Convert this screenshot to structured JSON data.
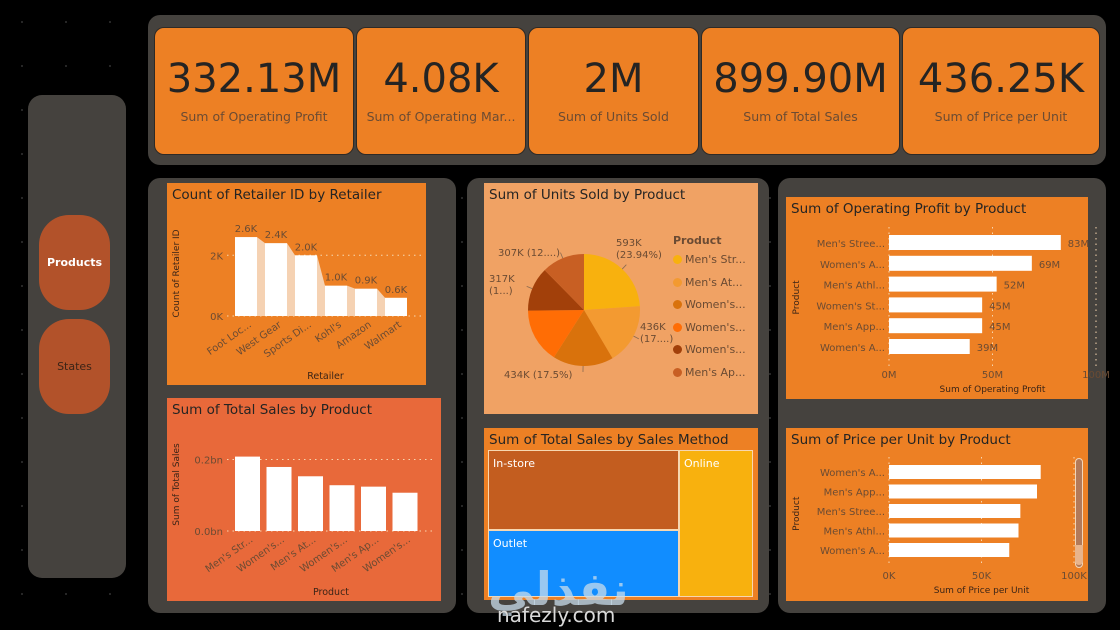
{
  "nav": {
    "buttons": [
      {
        "label": "Products",
        "active": true
      },
      {
        "label": "States",
        "active": false
      }
    ]
  },
  "kpis": [
    {
      "value": "332.13M",
      "label": "Sum of Operating Profit"
    },
    {
      "value": "4.08K",
      "label": "Sum of Operating Mar..."
    },
    {
      "value": "2M",
      "label": "Sum of Units Sold"
    },
    {
      "value": "899.90M",
      "label": "Sum of Total Sales"
    },
    {
      "value": "436.25K",
      "label": "Sum of Price per Unit"
    }
  ],
  "colors": {
    "background": "#000000",
    "panel": "#45423e",
    "accent_orange": "#ed8024",
    "light_orange": "#f0a264",
    "red_orange": "#e8693a",
    "nav_button": "#b2522a",
    "text_dark": "#252423"
  },
  "chart_data": [
    {
      "id": "retailer",
      "type": "bar",
      "title": "Count of Retailer ID by Retailer",
      "xlabel": "Retailer",
      "ylabel": "Count of Retailer ID",
      "categories": [
        "Foot Loc...",
        "West Gear",
        "Sports Di...",
        "Kohl's",
        "Amazon",
        "Walmart"
      ],
      "values": [
        2.6,
        2.4,
        2.0,
        1.0,
        0.9,
        0.6
      ],
      "data_labels": [
        "2.6K",
        "2.4K",
        "2.0K",
        "1.0K",
        "0.9K",
        "0.6K"
      ],
      "yticks": [
        "0K",
        "2K"
      ],
      "ytick_values": [
        0,
        2
      ],
      "ylim": [
        0,
        2.8
      ],
      "grid": true
    },
    {
      "id": "total_sales",
      "type": "bar",
      "title": "Sum of Total Sales by Product",
      "xlabel": "Product",
      "ylabel": "Sum of Total Sales",
      "categories": [
        "Men's Str...",
        "Women's...",
        "Men's At...",
        "Women's...",
        "Men's Ap...",
        "Women's..."
      ],
      "values": [
        0.208,
        0.179,
        0.153,
        0.128,
        0.124,
        0.107
      ],
      "yticks": [
        "0.0bn",
        "0.2bn"
      ],
      "ytick_values": [
        0,
        0.2
      ],
      "ylim": [
        0,
        0.26
      ],
      "grid": true
    },
    {
      "id": "units_sold",
      "type": "pie",
      "title": "Sum of Units Sold by Product",
      "legend_title": "Product",
      "legend_position": "right",
      "categories": [
        "Men's Str...",
        "Men's At...",
        "Women's...",
        "Women's...",
        "Women's...",
        "Men's Ap..."
      ],
      "values": [
        593,
        436,
        434,
        392,
        317,
        307
      ],
      "colors": [
        "#f8b10e",
        "#f39a31",
        "#d9720c",
        "#ff6d05",
        "#a2400a",
        "#c85f23"
      ],
      "data_labels": [
        "593K (23.94%)",
        "436K (17....)",
        "434K (17.5%)",
        "",
        "317K (1...)",
        "307K (12....)"
      ]
    },
    {
      "id": "sales_method",
      "type": "treemap",
      "title": "Sum of Total Sales by Sales Method",
      "categories": [
        "In-store",
        "Outlet",
        "Online"
      ],
      "colors": [
        "#c35d1f",
        "#118dff",
        "#f8b10e"
      ]
    },
    {
      "id": "operating_profit",
      "type": "bar",
      "orientation": "horizontal",
      "title": "Sum of Operating Profit by Product",
      "xlabel": "Sum of Operating Profit",
      "ylabel": "Product",
      "categories": [
        "Men's Stree...",
        "Women's A...",
        "Men's Athl...",
        "Women's St...",
        "Men's App...",
        "Women's A..."
      ],
      "values": [
        83,
        69,
        52,
        45,
        45,
        39
      ],
      "data_labels": [
        "83M",
        "69M",
        "52M",
        "45M",
        "45M",
        "39M"
      ],
      "xticks": [
        "0M",
        "50M",
        "100M"
      ],
      "xtick_values": [
        0,
        50,
        100
      ],
      "xlim": [
        0,
        100
      ],
      "grid": true
    },
    {
      "id": "price_per_unit",
      "type": "bar",
      "orientation": "horizontal",
      "title": "Sum of Price per Unit by Product",
      "xlabel": "Sum of Price per Unit",
      "ylabel": "Product",
      "categories": [
        "Women's A...",
        "Men's App...",
        "Men's Stree...",
        "Men's Athl...",
        "Women's A..."
      ],
      "values": [
        82,
        80,
        71,
        70,
        65
      ],
      "xticks": [
        "0K",
        "50K",
        "100K"
      ],
      "xtick_values": [
        0,
        50,
        100
      ],
      "xlim": [
        0,
        100
      ],
      "grid": true
    }
  ],
  "watermark": {
    "arabic": "نفذلي",
    "url": "nafezly.com"
  }
}
